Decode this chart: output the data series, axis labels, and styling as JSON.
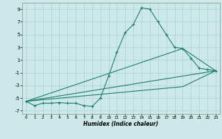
{
  "xlabel": "Humidex (Indice chaleur)",
  "bg_color": "#cce8e8",
  "grid_color": "#b0d4d4",
  "line_color": "#1a7a6a",
  "xlim": [
    -0.5,
    23.5
  ],
  "ylim": [
    -7.5,
    10.0
  ],
  "xticks": [
    0,
    1,
    2,
    3,
    4,
    5,
    6,
    7,
    8,
    9,
    10,
    11,
    12,
    13,
    14,
    15,
    16,
    17,
    18,
    19,
    20,
    21,
    22,
    23
  ],
  "yticks": [
    -7,
    -5,
    -3,
    -1,
    1,
    3,
    5,
    7,
    9
  ],
  "line1_x": [
    0,
    1,
    2,
    3,
    4,
    5,
    6,
    7,
    8,
    9,
    10,
    11,
    12,
    13,
    14,
    15,
    16,
    17,
    18,
    19,
    20,
    21,
    22,
    23
  ],
  "line1_y": [
    -5.5,
    -6.2,
    -5.8,
    -5.8,
    -5.7,
    -5.8,
    -5.8,
    -6.2,
    -6.3,
    -5.0,
    -1.5,
    2.2,
    5.3,
    6.6,
    9.2,
    9.0,
    7.0,
    5.0,
    3.0,
    2.8,
    1.3,
    -0.3,
    -0.5,
    -0.7
  ],
  "line2_x": [
    0,
    23
  ],
  "line2_y": [
    -5.5,
    -0.7
  ],
  "line3_x": [
    0,
    19,
    23
  ],
  "line3_y": [
    -5.5,
    2.8,
    -0.7
  ],
  "line4_x": [
    0,
    19,
    23
  ],
  "line4_y": [
    -5.5,
    -3.2,
    -0.7
  ]
}
